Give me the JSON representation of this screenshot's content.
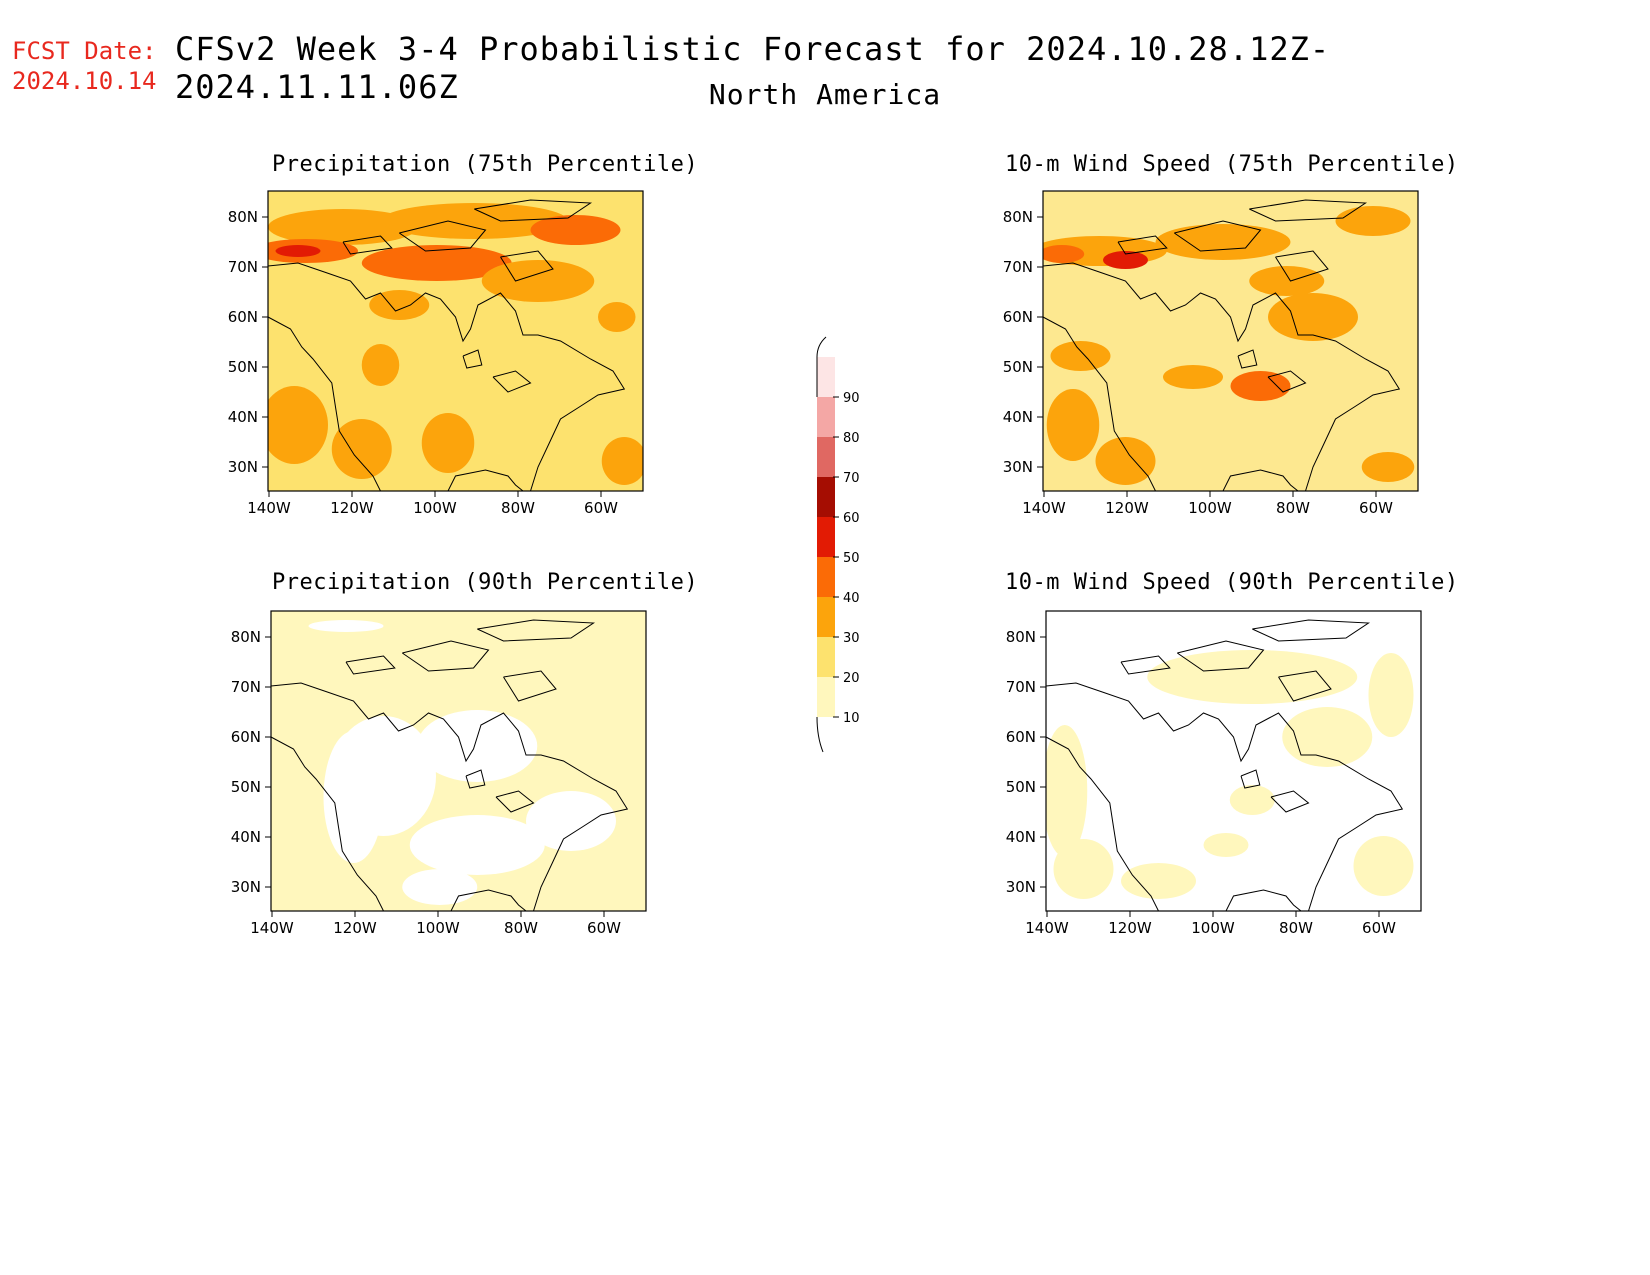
{
  "header": {
    "fcst_label": "FCST Date:",
    "fcst_date": "2024.10.14",
    "title": "CFSv2 Week 3-4 Probabilistic Forecast for 2024.10.28.12Z-2024.11.11.06Z",
    "region": "North America"
  },
  "axes": {
    "lat_labels": [
      "80N",
      "70N",
      "60N",
      "50N",
      "40N",
      "30N"
    ],
    "lon_labels": [
      "140W",
      "120W",
      "100W",
      "80W",
      "60W"
    ]
  },
  "panels": [
    {
      "id": "precip75",
      "title": "Precipitation (75th Percentile)",
      "base": "#fde26e"
    },
    {
      "id": "wind75",
      "title": "10-m Wind Speed (75th Percentile)",
      "base": "#fde890"
    },
    {
      "id": "precip90",
      "title": "Precipitation (90th Percentile)",
      "base": "#fff7bd"
    },
    {
      "id": "wind90",
      "title": "10-m Wind Speed (90th Percentile)",
      "base": "#ffffff"
    }
  ],
  "colorbar": {
    "levels": [
      "10",
      "20",
      "30",
      "40",
      "50",
      "60",
      "70",
      "80",
      "90"
    ],
    "colors": [
      "#fff7bd",
      "#fde26e",
      "#fca40c",
      "#fb6b06",
      "#e21b04",
      "#a50d02",
      "#e06862",
      "#f4a7a5",
      "#fde5e5"
    ]
  }
}
